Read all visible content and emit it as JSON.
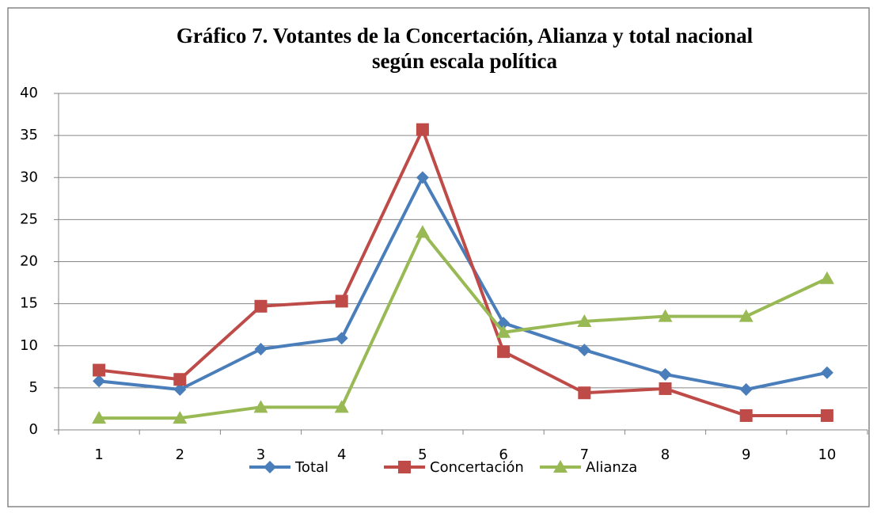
{
  "chart_data": {
    "type": "line",
    "title": [
      "Gráfico 7. Votantes de la Concertación, Alianza y total nacional",
      "según escala política"
    ],
    "categories": [
      "1",
      "2",
      "3",
      "4",
      "5",
      "6",
      "7",
      "8",
      "9",
      "10"
    ],
    "series": [
      {
        "name": "Total",
        "color": "#4a7ebb",
        "marker": "diamond",
        "values": [
          5.8,
          4.8,
          9.6,
          10.9,
          30,
          12.7,
          9.5,
          6.6,
          4.8,
          6.8
        ]
      },
      {
        "name": "Concertación",
        "color": "#be4b48",
        "marker": "square",
        "values": [
          7.1,
          6.0,
          14.7,
          15.3,
          35.7,
          9.3,
          4.4,
          4.9,
          1.7,
          1.7
        ]
      },
      {
        "name": "Alianza",
        "color": "#98b954",
        "marker": "triangle",
        "values": [
          1.4,
          1.4,
          2.7,
          2.7,
          23.5,
          11.6,
          12.9,
          13.5,
          13.5,
          18
        ]
      }
    ],
    "ylim": [
      0,
      40
    ],
    "yticks": [
      0,
      5,
      10,
      15,
      20,
      25,
      30,
      35,
      40
    ],
    "grid": true,
    "legend": "bottom"
  }
}
